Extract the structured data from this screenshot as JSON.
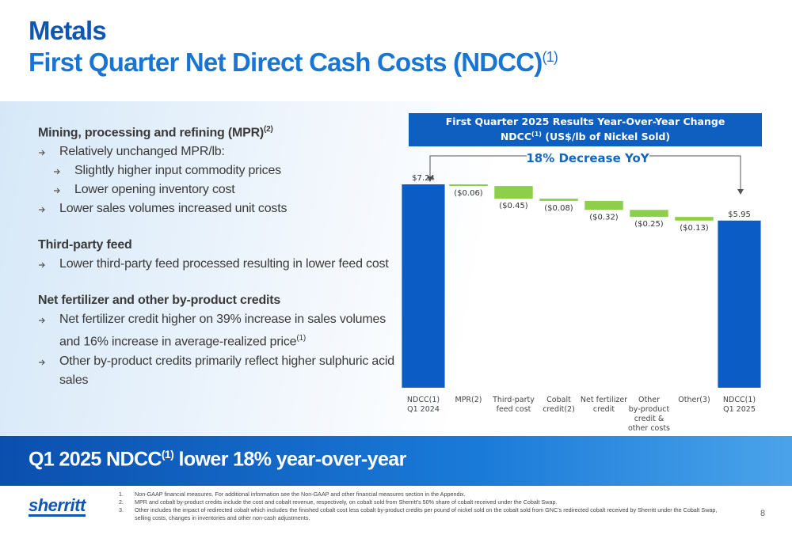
{
  "header": {
    "title": "Metals",
    "subtitle": "First Quarter Net Direct Cash Costs (NDCC)",
    "subtitle_sup": "(1)"
  },
  "sections": [
    {
      "heading": {
        "text": "Mining, processing and refining (MPR)",
        "sup": "(2)"
      },
      "bullets": [
        {
          "text": "Relatively unchanged MPR/lb:",
          "subitems": [
            "Slightly higher input commodity prices",
            "Lower opening inventory cost"
          ]
        },
        {
          "text": "Lower sales volumes increased unit costs"
        }
      ]
    },
    {
      "heading": {
        "text": "Third-party feed"
      },
      "bullets": [
        {
          "text": "Lower third-party feed processed resulting in lower feed cost"
        }
      ]
    },
    {
      "heading": {
        "text": "Net fertilizer and other by-product credits"
      },
      "bullets": [
        {
          "text": "Net fertilizer credit higher on 39% increase in sales volumes and 16% increase in average-realized price",
          "sup": "(1)"
        },
        {
          "text": "Other by-product credits primarily reflect higher sulphuric acid sales"
        }
      ]
    }
  ],
  "chart_data": {
    "type": "waterfall",
    "title": "First Quarter 2025 Results Year-Over-Year Change",
    "subtitle": {
      "text": "NDCC",
      "sup": "(1)",
      "rest": " (US$/lb of Nickel Sold)"
    },
    "annotation": "18% Decrease YoY",
    "categories": [
      [
        "NDCC(1)",
        "Q1 2024"
      ],
      [
        "MPR(2)"
      ],
      [
        "Third-party",
        "feed cost"
      ],
      [
        "Cobalt",
        "credit(2)"
      ],
      [
        "Net fertilizer",
        "credit"
      ],
      [
        "Other",
        "by-product",
        "credit &",
        "other costs"
      ],
      [
        "Other(3)"
      ],
      [
        "NDCC(1)",
        "Q1 2025"
      ]
    ],
    "values": [
      7.24,
      -0.06,
      -0.45,
      -0.08,
      -0.32,
      -0.25,
      -0.13,
      5.95
    ],
    "value_labels": [
      "$7.24",
      "($0.06)",
      "($0.45)",
      "($0.08)",
      "($0.32)",
      "($0.25)",
      "($0.13)",
      "$5.95"
    ],
    "colors": [
      "#0b5cc4",
      "#8dcf4a",
      "#8dcf4a",
      "#8dcf4a",
      "#8dcf4a",
      "#8dcf4a",
      "#8dcf4a",
      "#0b5cc4"
    ]
  },
  "banner": {
    "text": "Q1 2025 NDCC",
    "sup": "(1)",
    "rest": " lower 18% year-over-year"
  },
  "footer": {
    "logo": "sherritt",
    "page": "8",
    "footnotes": [
      {
        "num": "1.",
        "text": "Non-GAAP financial measures. For additional information see the Non-GAAP and other financial measures section in the Appendix."
      },
      {
        "num": "2.",
        "text": "MPR and cobalt by-product credits include the cost and cobalt revenue, respectively, on cobalt sold from Sherritt’s 50% share of cobalt received under the Cobalt Swap."
      },
      {
        "num": "3.",
        "text": "Other includes the impact of redirected cobalt which includes the finished cobalt cost less cobalt by-product credits per pound of nickel sold on the cobalt sold from GNC’s redirected cobalt received by Sherritt under the Cobalt Swap, selling costs, changes in inventories and other non-cash adjustments."
      }
    ]
  }
}
